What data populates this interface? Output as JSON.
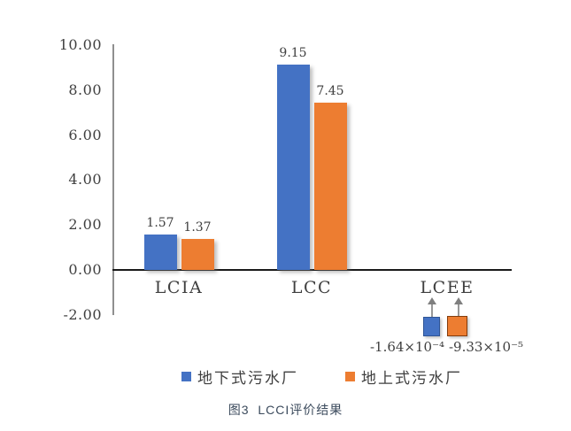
{
  "chart_data": {
    "type": "bar",
    "title": "图3  LCCI评价结果",
    "categories": [
      "LCIA",
      "LCC",
      "LCEE"
    ],
    "series": [
      {
        "name": "地下式污水厂",
        "color": "#4472C4",
        "values": [
          1.57,
          9.15,
          -0.000164
        ],
        "bar_labels": [
          "1.57",
          "9.15",
          "-1.64×10⁻⁴"
        ]
      },
      {
        "name": "地上式污水厂",
        "color": "#ED7D31",
        "values": [
          1.37,
          7.45,
          -9.33e-05
        ],
        "bar_labels": [
          "1.37",
          "7.45",
          "-9.33×10⁻⁵"
        ]
      }
    ],
    "y_ticks": [
      "10.00",
      "8.00",
      "6.00",
      "4.00",
      "2.00",
      "0.00",
      "-2.00"
    ],
    "y_tick_values": [
      10,
      8,
      6,
      4,
      2,
      0,
      -2
    ],
    "ylim": [
      -2,
      10
    ],
    "xlabel": "",
    "ylabel": "",
    "grid": false,
    "legend_position": "bottom"
  },
  "caption": "图3  LCCI评价结果",
  "colors": {
    "series_blue": "#4472C4",
    "series_orange": "#ED7D31",
    "x_axis_line": "#1a1a1a",
    "y_axis_line": "#8f8f8f",
    "label_text": "#3f3f3f",
    "caption_text": "#3b4a5c"
  }
}
